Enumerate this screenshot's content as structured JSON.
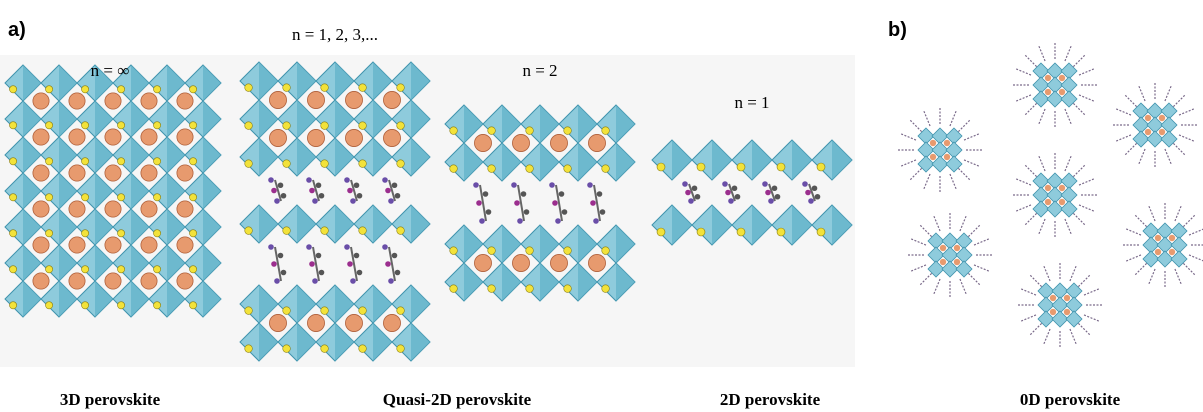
{
  "panel_a": {
    "label": "a)",
    "n_labels": [
      "n = 1, 2, 3,...",
      "n = ∞",
      "n = 2",
      "n = 1"
    ],
    "captions": [
      "3D perovskite",
      "Quasi-2D perovskite",
      "2D perovskite"
    ]
  },
  "panel_b": {
    "label": "b)",
    "caption": "0D perovskite"
  }
}
